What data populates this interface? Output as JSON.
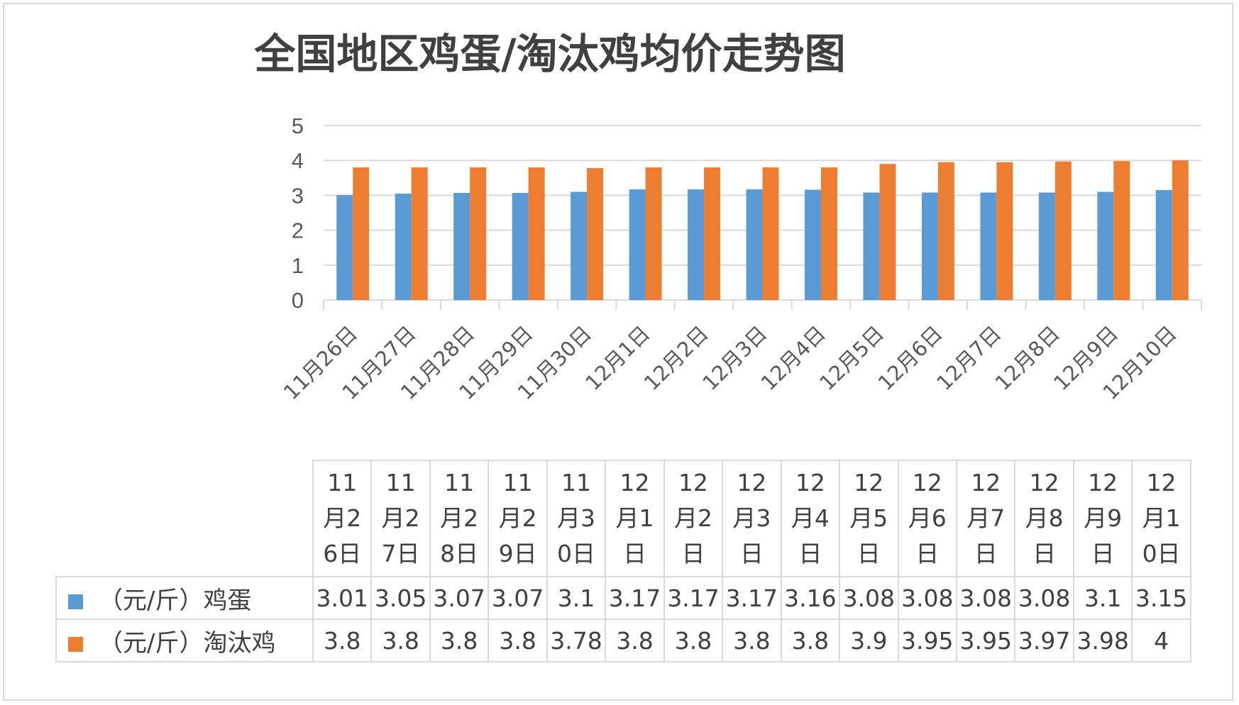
{
  "chart_data": {
    "type": "bar",
    "title": "全国地区鸡蛋/淘汰鸡均价走势图",
    "categories": [
      "11月26日",
      "11月27日",
      "11月28日",
      "11月29日",
      "11月30日",
      "12月1日",
      "12月2日",
      "12月3日",
      "12月4日",
      "12月5日",
      "12月6日",
      "12月7日",
      "12月8日",
      "12月9日",
      "12月10日"
    ],
    "series": [
      {
        "name": "（元/斤）鸡蛋",
        "color": "#5b9bd5",
        "values": [
          3.01,
          3.05,
          3.07,
          3.07,
          3.1,
          3.17,
          3.17,
          3.17,
          3.16,
          3.08,
          3.08,
          3.08,
          3.08,
          3.1,
          3.15
        ]
      },
      {
        "name": "（元/斤）淘汰鸡",
        "color": "#ed7d31",
        "values": [
          3.8,
          3.8,
          3.8,
          3.8,
          3.78,
          3.8,
          3.8,
          3.8,
          3.8,
          3.9,
          3.95,
          3.95,
          3.97,
          3.98,
          4
        ]
      }
    ],
    "ylim": [
      0,
      5
    ],
    "yticks": [
      0,
      1,
      2,
      3,
      4,
      5
    ],
    "grid": true,
    "legend": "data-table",
    "data_table": {
      "header": [
        "11月26日",
        "11月27日",
        "11月28日",
        "11月29日",
        "11月30日",
        "12月1日",
        "12月2日",
        "12月3日",
        "12月4日",
        "12月5日",
        "12月6日",
        "12月7日",
        "12月8日",
        "12月9日",
        "12月10日"
      ],
      "rows": [
        {
          "label": "（元/斤）鸡蛋",
          "cells": [
            "3.01",
            "3.05",
            "3.07",
            "3.07",
            "3.1",
            "3.17",
            "3.17",
            "3.17",
            "3.16",
            "3.08",
            "3.08",
            "3.08",
            "3.08",
            "3.1",
            "3.15"
          ]
        },
        {
          "label": "（元/斤）淘汰鸡",
          "cells": [
            "3.8",
            "3.8",
            "3.8",
            "3.8",
            "3.78",
            "3.8",
            "3.8",
            "3.8",
            "3.8",
            "3.9",
            "3.95",
            "3.95",
            "3.97",
            "3.98",
            "4"
          ]
        }
      ]
    }
  }
}
